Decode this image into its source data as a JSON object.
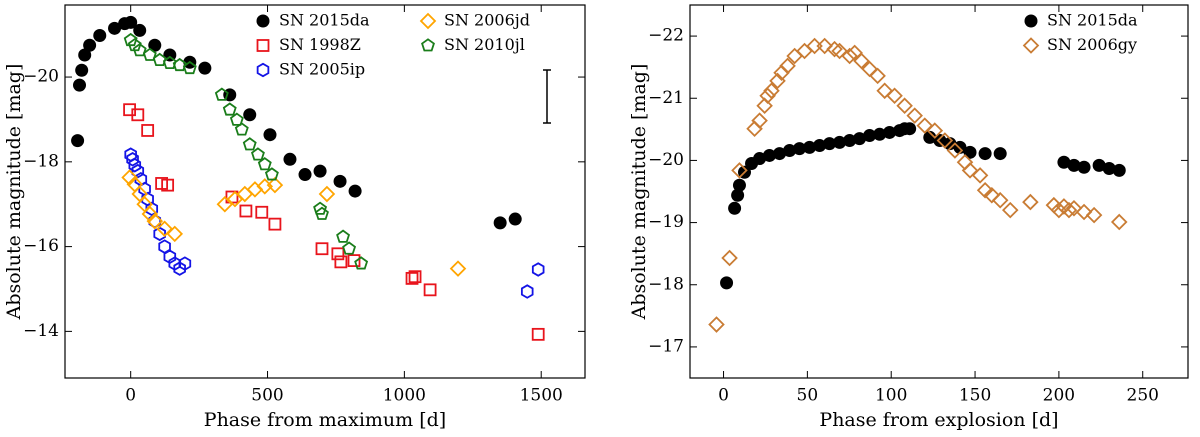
{
  "chart_data": [
    {
      "type": "scatter",
      "xlabel": "Phase from maximum [d]",
      "ylabel": "Absolute magnitude [mag]",
      "xlim": [
        -240,
        1660
      ],
      "ylim": [
        -21.7,
        -12.9
      ],
      "y_inverted": true,
      "xticks": [
        0,
        500,
        1000,
        1500
      ],
      "yticks": [
        -20,
        -18,
        -16,
        -14
      ],
      "legend": "upper right",
      "legend_columns": 2,
      "series": [
        {
          "name": "SN 2015da",
          "color": "#000000",
          "marker": "circle",
          "x": [
            -194,
            -187,
            -179,
            -168,
            -150,
            -113,
            -59,
            -22,
            0,
            33,
            88,
            143,
            216,
            271,
            362,
            435,
            509,
            582,
            637,
            692,
            765,
            820,
            1350,
            1405
          ],
          "values": [
            -18.5,
            -19.81,
            -20.16,
            -20.52,
            -20.75,
            -20.98,
            -21.15,
            -21.26,
            -21.29,
            -21.1,
            -20.75,
            -20.52,
            -20.35,
            -20.21,
            -19.58,
            -19.11,
            -18.64,
            -18.06,
            -17.7,
            -17.78,
            -17.54,
            -17.31,
            -16.56,
            -16.65
          ]
        },
        {
          "name": "SN 1998Z",
          "color": "#e8141c",
          "marker": "square",
          "x": [
            -4,
            26,
            62,
            113,
            135,
            370,
            421,
            479,
            527,
            699,
            757,
            768,
            816,
            1028,
            1039,
            1094,
            1489
          ],
          "values": [
            -19.23,
            -19.11,
            -18.74,
            -17.49,
            -17.45,
            -17.17,
            -16.84,
            -16.81,
            -16.53,
            -15.95,
            -15.83,
            -15.64,
            -15.67,
            -15.25,
            -15.29,
            -14.98,
            -13.93
          ]
        },
        {
          "name": "SN 2005ip",
          "color": "#1414e6",
          "marker": "hexagon",
          "x": [
            0,
            7,
            15,
            26,
            37,
            51,
            62,
            77,
            88,
            106,
            124,
            143,
            161,
            179,
            198,
            1449,
            1489
          ],
          "values": [
            -18.17,
            -18.06,
            -17.92,
            -17.78,
            -17.59,
            -17.36,
            -17.12,
            -16.89,
            -16.6,
            -16.3,
            -16.0,
            -15.76,
            -15.6,
            -15.48,
            -15.6,
            -14.94,
            -15.46
          ]
        },
        {
          "name": "SN 2006jd",
          "color": "#ffa500",
          "marker": "diamond",
          "x": [
            -4,
            15,
            33,
            51,
            70,
            88,
            124,
            161,
            344,
            381,
            417,
            454,
            490,
            527,
            717,
            1196
          ],
          "values": [
            -17.63,
            -17.47,
            -17.24,
            -17.0,
            -16.77,
            -16.6,
            -16.42,
            -16.3,
            -17.0,
            -17.12,
            -17.24,
            -17.35,
            -17.42,
            -17.45,
            -17.24,
            -15.48
          ]
        },
        {
          "name": "SN 2010jl",
          "color": "#1a7d1a",
          "marker": "pentagon",
          "x": [
            0,
            15,
            33,
            70,
            106,
            143,
            179,
            216,
            333,
            362,
            388,
            406,
            435,
            465,
            490,
            516,
            692,
            699,
            776,
            798,
            842
          ],
          "values": [
            -20.87,
            -20.75,
            -20.63,
            -20.52,
            -20.4,
            -20.33,
            -20.28,
            -20.21,
            -19.58,
            -19.23,
            -18.99,
            -18.76,
            -18.41,
            -18.17,
            -17.94,
            -17.7,
            -16.89,
            -16.77,
            -16.23,
            -15.95,
            -15.6
          ]
        }
      ]
    },
    {
      "type": "scatter",
      "xlabel": "Phase from explosion [d]",
      "ylabel": "Absolute magnitude [mag]",
      "xlim": [
        -20,
        277
      ],
      "ylim": [
        -22.5,
        -16.5
      ],
      "y_inverted": true,
      "xticks": [
        0,
        50,
        100,
        150,
        200,
        250
      ],
      "yticks": [
        -22,
        -21,
        -20,
        -19,
        -18,
        -17
      ],
      "legend": "upper right",
      "legend_columns": 1,
      "series": [
        {
          "name": "SN 2015da",
          "color": "#000000",
          "marker": "circle",
          "x": [
            1.8,
            6.6,
            8.4,
            9.5,
            12.5,
            16.7,
            21.5,
            27.4,
            33.4,
            39.4,
            45.3,
            51.3,
            57.3,
            63.2,
            69.2,
            75.2,
            81.1,
            87.1,
            93.1,
            99,
            105,
            108,
            111,
            123,
            129,
            135,
            141,
            147,
            156,
            165,
            203,
            209,
            215,
            224,
            230,
            236
          ],
          "values": [
            -18.03,
            -19.23,
            -19.44,
            -19.6,
            -19.81,
            -19.95,
            -20.03,
            -20.08,
            -20.11,
            -20.16,
            -20.19,
            -20.21,
            -20.24,
            -20.27,
            -20.29,
            -20.32,
            -20.35,
            -20.4,
            -20.42,
            -20.45,
            -20.48,
            -20.51,
            -20.51,
            -20.37,
            -20.32,
            -20.27,
            -20.21,
            -20.13,
            -20.11,
            -20.11,
            -19.97,
            -19.92,
            -19.89,
            -19.92,
            -19.87,
            -19.84
          ]
        },
        {
          "name": "SN 2006gy",
          "color": "#c97c34",
          "marker": "diamond",
          "x": [
            -4.2,
            3.6,
            9.5,
            18.5,
            21.5,
            24.5,
            26.3,
            28.6,
            32.2,
            34.6,
            38.2,
            42.4,
            48.3,
            54.3,
            60.3,
            66.2,
            69.2,
            75.2,
            78.2,
            82.3,
            87.1,
            91.9,
            96.1,
            102,
            108,
            114,
            120,
            126,
            132,
            138,
            144,
            147,
            153,
            156,
            160,
            165,
            171,
            183,
            197,
            200,
            203,
            206,
            209,
            215,
            221,
            236
          ],
          "values": [
            -17.36,
            -18.43,
            -19.84,
            -20.51,
            -20.64,
            -20.88,
            -21.04,
            -21.12,
            -21.28,
            -21.41,
            -21.52,
            -21.68,
            -21.76,
            -21.84,
            -21.84,
            -21.79,
            -21.76,
            -21.68,
            -21.73,
            -21.6,
            -21.47,
            -21.36,
            -21.12,
            -21.04,
            -20.88,
            -20.72,
            -20.56,
            -20.48,
            -20.32,
            -20.16,
            -19.97,
            -19.84,
            -19.76,
            -19.52,
            -19.44,
            -19.36,
            -19.2,
            -19.33,
            -19.28,
            -19.2,
            -19.26,
            -19.2,
            -19.23,
            -19.17,
            -19.12,
            -19.01
          ]
        }
      ]
    }
  ]
}
